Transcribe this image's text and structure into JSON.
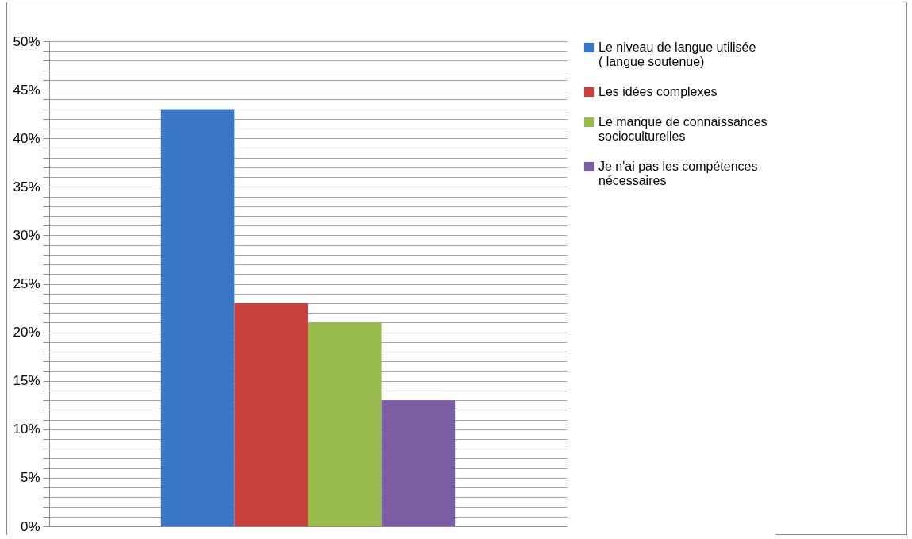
{
  "chart_data": {
    "type": "bar",
    "categories": [
      null
    ],
    "series": [
      {
        "name": "Le niveau de langue utilisée    ( langue soutenue)",
        "color": "#3a76c6",
        "values": [
          43
        ]
      },
      {
        "name": "Les idées complexes",
        "color": "#c8413e",
        "values": [
          23
        ]
      },
      {
        "name": "Le manque de connaissances socioculturelles",
        "color": "#98bb4c",
        "values": [
          21
        ]
      },
      {
        "name": "Je n'ai pas les compétences nécessaires",
        "color": "#7c5ca3",
        "values": [
          13
        ]
      }
    ],
    "ylim": [
      0,
      50
    ],
    "yticks": [
      {
        "value": 0,
        "label": "0%"
      },
      {
        "value": 1,
        "label": null
      },
      {
        "value": 2,
        "label": null
      },
      {
        "value": 3,
        "label": null
      },
      {
        "value": 4,
        "label": null
      },
      {
        "value": 5,
        "label": "5%"
      },
      {
        "value": 6,
        "label": null
      },
      {
        "value": 7,
        "label": null
      },
      {
        "value": 8,
        "label": null
      },
      {
        "value": 9,
        "label": null
      },
      {
        "value": 10,
        "label": "10%"
      },
      {
        "value": 11,
        "label": null
      },
      {
        "value": 12,
        "label": null
      },
      {
        "value": 13,
        "label": null
      },
      {
        "value": 14,
        "label": null
      },
      {
        "value": 15,
        "label": "15%"
      },
      {
        "value": 16,
        "label": null
      },
      {
        "value": 17,
        "label": null
      },
      {
        "value": 18,
        "label": null
      },
      {
        "value": 19,
        "label": null
      },
      {
        "value": 20,
        "label": "20%"
      },
      {
        "value": 21,
        "label": null
      },
      {
        "value": 22,
        "label": null
      },
      {
        "value": 23,
        "label": null
      },
      {
        "value": 24,
        "label": null
      },
      {
        "value": 25,
        "label": "25%"
      },
      {
        "value": 26,
        "label": null
      },
      {
        "value": 27,
        "label": null
      },
      {
        "value": 28,
        "label": null
      },
      {
        "value": 29,
        "label": null
      },
      {
        "value": 30,
        "label": "30%"
      },
      {
        "value": 31,
        "label": null
      },
      {
        "value": 32,
        "label": null
      },
      {
        "value": 33,
        "label": null
      },
      {
        "value": 34,
        "label": null
      },
      {
        "value": 35,
        "label": "35%"
      },
      {
        "value": 36,
        "label": null
      },
      {
        "value": 37,
        "label": null
      },
      {
        "value": 38,
        "label": null
      },
      {
        "value": 39,
        "label": null
      },
      {
        "value": 40,
        "label": "40%"
      },
      {
        "value": 41,
        "label": null
      },
      {
        "value": 42,
        "label": null
      },
      {
        "value": 43,
        "label": null
      },
      {
        "value": 44,
        "label": null
      },
      {
        "value": 45,
        "label": "45%"
      },
      {
        "value": 46,
        "label": null
      },
      {
        "value": 47,
        "label": null
      },
      {
        "value": 48,
        "label": null
      },
      {
        "value": 49,
        "label": null
      },
      {
        "value": 50,
        "label": "50%"
      }
    ],
    "grid": true,
    "legend": "right",
    "tick_labels": "y"
  }
}
